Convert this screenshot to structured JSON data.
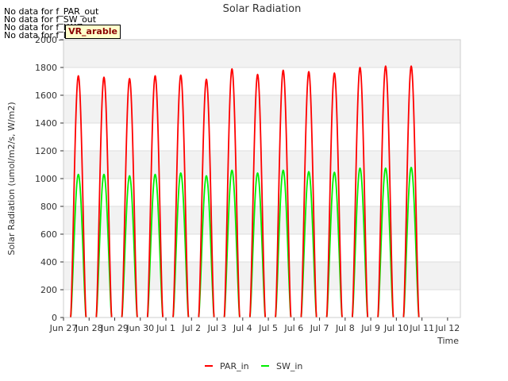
{
  "nodata_messages": [
    "No data for f_PAR_out",
    "No data for f_SW_out",
    "No data for f_LW_in",
    "No data for f_LW_out"
  ],
  "site_tag": "VR_arable",
  "chart_data": {
    "type": "line",
    "title": "Solar Radiation",
    "xlabel": "Time",
    "ylabel": "Solar Radiation (umol/m2/s, W/m2)",
    "ylim": [
      0,
      2000
    ],
    "y_ticks": [
      0,
      200,
      400,
      600,
      800,
      1000,
      1200,
      1400,
      1600,
      1800,
      2000
    ],
    "xlim": [
      0,
      15.5
    ],
    "x_ticks": [
      {
        "x": 0,
        "label": "Jun 27"
      },
      {
        "x": 1,
        "label": "Jun 28"
      },
      {
        "x": 2,
        "label": "Jun 29"
      },
      {
        "x": 3,
        "label": "Jun 30"
      },
      {
        "x": 4,
        "label": "Jul 1"
      },
      {
        "x": 5,
        "label": "Jul 2"
      },
      {
        "x": 6,
        "label": "Jul 3"
      },
      {
        "x": 7,
        "label": "Jul 4"
      },
      {
        "x": 8,
        "label": "Jul 5"
      },
      {
        "x": 9,
        "label": "Jul 6"
      },
      {
        "x": 10,
        "label": "Jul 7"
      },
      {
        "x": 11,
        "label": "Jul 8"
      },
      {
        "x": 12,
        "label": "Jul 9"
      },
      {
        "x": 13,
        "label": "Jul 10"
      },
      {
        "x": 14,
        "label": "Jul 11"
      },
      {
        "x": 15,
        "label": "Jul 12"
      }
    ],
    "grid": true,
    "legend_position": "bottom-center",
    "series": [
      {
        "name": "PAR_in",
        "color": "#ff0000",
        "day_peaks": [
          1740,
          1730,
          1720,
          1740,
          1745,
          1715,
          1790,
          1750,
          1780,
          1770,
          1760,
          1800,
          1810,
          1810
        ]
      },
      {
        "name": "SW_in",
        "color": "#00ee00",
        "day_peaks": [
          1030,
          1030,
          1020,
          1030,
          1040,
          1020,
          1060,
          1040,
          1060,
          1050,
          1045,
          1075,
          1075,
          1080
        ]
      }
    ],
    "day_first_x": 0.58,
    "sunrise_offset": -0.3,
    "sunset_offset": 0.3
  }
}
